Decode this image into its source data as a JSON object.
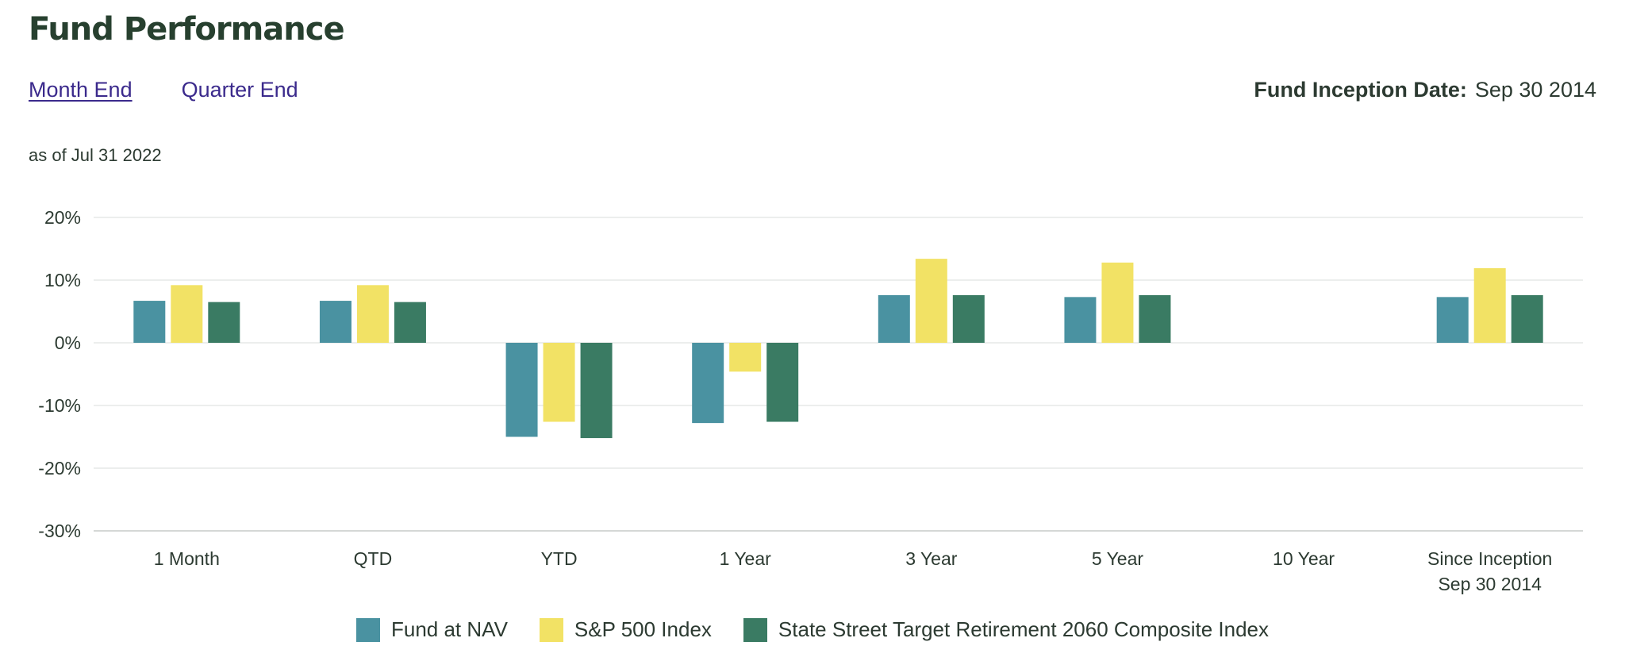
{
  "page": {
    "title": "Fund Performance",
    "tabs": [
      {
        "label": "Month End",
        "active": true
      },
      {
        "label": "Quarter End",
        "active": false
      }
    ],
    "inception_label": "Fund Inception Date:",
    "inception_value": "Sep 30 2014",
    "as_of": "as of Jul 31 2022"
  },
  "chart_data": {
    "type": "bar",
    "title": "",
    "xlabel": "",
    "ylabel": "",
    "ylim": [
      -30,
      20
    ],
    "yticks": [
      20,
      10,
      0,
      -10,
      -20,
      -30
    ],
    "ytick_labels": [
      "20%",
      "10%",
      "0%",
      "-10%",
      "-20%",
      "-30%"
    ],
    "grid": true,
    "legend_position": "bottom-center",
    "categories": [
      [
        "1 Month"
      ],
      [
        "QTD"
      ],
      [
        "YTD"
      ],
      [
        "1 Year"
      ],
      [
        "3 Year"
      ],
      [
        "5 Year"
      ],
      [
        "10 Year"
      ],
      [
        "Since Inception",
        "Sep 30 2014"
      ]
    ],
    "series": [
      {
        "name": "Fund at NAV",
        "color": "#4a92a1",
        "values": [
          6.7,
          6.7,
          -15.0,
          -12.8,
          7.6,
          7.3,
          null,
          7.3
        ]
      },
      {
        "name": "S&P 500 Index",
        "color": "#f2e265",
        "values": [
          9.2,
          9.2,
          -12.6,
          -4.6,
          13.4,
          12.8,
          null,
          11.9
        ]
      },
      {
        "name": "State Street Target Retirement 2060 Composite Index",
        "color": "#3a7b63",
        "values": [
          6.5,
          6.5,
          -15.2,
          -12.6,
          7.6,
          7.6,
          null,
          7.6
        ]
      }
    ]
  }
}
